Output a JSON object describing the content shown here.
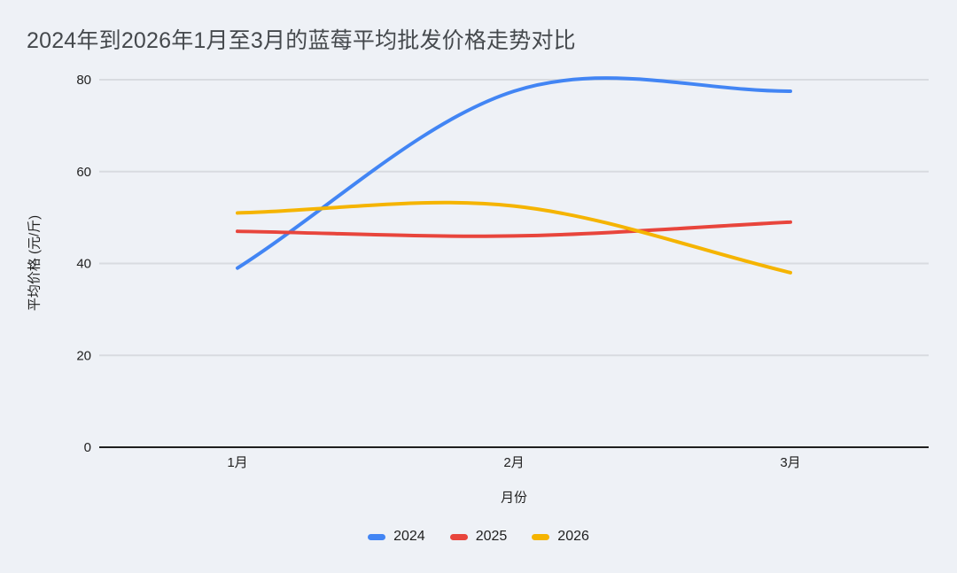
{
  "title": "2024年到2026年1月至3月的蓝莓平均批发价格走势对比",
  "chart_data": {
    "type": "line",
    "title": "2024年到2026年1月至3月的蓝莓平均批发价格走势对比",
    "categories": [
      "1月",
      "2月",
      "3月"
    ],
    "xlabel": "月份",
    "ylabel": "平均价格 (元/斤)",
    "ylim": [
      0,
      80
    ],
    "yticks": [
      0,
      20,
      40,
      60,
      80
    ],
    "grid": true,
    "smooth": true,
    "legend_position": "bottom",
    "series": [
      {
        "name": "2024",
        "color": "#4285F4",
        "values": [
          39,
          77.5,
          77.5
        ]
      },
      {
        "name": "2025",
        "color": "#E8453C",
        "values": [
          47,
          46,
          49
        ]
      },
      {
        "name": "2026",
        "color": "#F5B400",
        "values": [
          51,
          52.5,
          38
        ]
      }
    ]
  },
  "colors": {
    "background": "#eef1f6",
    "gridline": "#d8dbe0",
    "baseline": "#1f1f1f",
    "title_text": "#45494d",
    "axis_text": "#1f1f1f"
  }
}
